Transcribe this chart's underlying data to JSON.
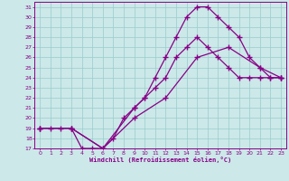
{
  "xlabel": "Windchill (Refroidissement éolien,°C)",
  "bg_color": "#cce8e8",
  "line_color": "#880088",
  "grid_color": "#99cccc",
  "xlim": [
    -0.5,
    23.5
  ],
  "ylim": [
    17,
    31.5
  ],
  "xticks": [
    0,
    1,
    2,
    3,
    4,
    5,
    6,
    7,
    8,
    9,
    10,
    11,
    12,
    13,
    14,
    15,
    16,
    17,
    18,
    19,
    20,
    21,
    22,
    23
  ],
  "yticks": [
    17,
    18,
    19,
    20,
    21,
    22,
    23,
    24,
    25,
    26,
    27,
    28,
    29,
    30,
    31
  ],
  "curve1_x": [
    0,
    1,
    2,
    3,
    4,
    5,
    6,
    7,
    8,
    9,
    10,
    11,
    12,
    13,
    14,
    15,
    16,
    17,
    18,
    19,
    20,
    21,
    22,
    23
  ],
  "curve1_y": [
    19,
    19,
    19,
    19,
    17,
    17,
    17,
    18,
    20,
    21,
    22,
    24,
    26,
    28,
    30,
    31,
    31,
    30,
    29,
    28,
    26,
    25,
    24,
    24
  ],
  "curve2_x": [
    0,
    3,
    6,
    9,
    10,
    11,
    12,
    13,
    14,
    15,
    16,
    17,
    18,
    19,
    20,
    21,
    22,
    23
  ],
  "curve2_y": [
    19,
    19,
    17,
    21,
    22,
    23,
    24,
    26,
    27,
    28,
    27,
    26,
    25,
    24,
    24,
    24,
    24,
    24
  ],
  "curve3_x": [
    0,
    3,
    6,
    9,
    12,
    15,
    18,
    21,
    23
  ],
  "curve3_y": [
    19,
    19,
    17,
    20,
    22,
    26,
    27,
    25,
    24
  ],
  "marker": "+",
  "markersize": 4,
  "linewidth": 0.9
}
